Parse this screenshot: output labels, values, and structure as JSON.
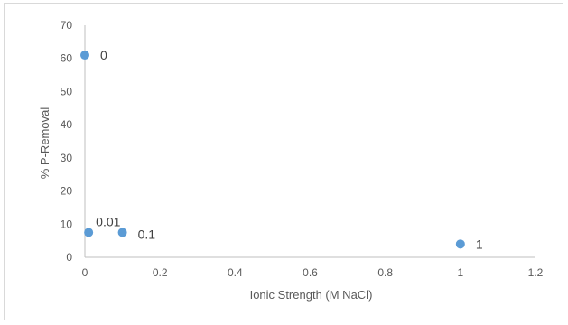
{
  "chart_data": {
    "type": "scatter",
    "title": "",
    "xlabel": "Ionic Strength (M NaCl)",
    "ylabel": "% P-Removal",
    "xlim": [
      0,
      1.2
    ],
    "ylim": [
      0,
      70
    ],
    "xticks": [
      "0",
      "0.2",
      "0.4",
      "0.6",
      "0.8",
      "1",
      "1.2"
    ],
    "yticks": [
      "0",
      "10",
      "20",
      "30",
      "40",
      "50",
      "60",
      "70"
    ],
    "grid": false,
    "legend": "none",
    "marker_color": "#5b9bd5",
    "series": [
      {
        "points": [
          {
            "x": 0,
            "y": 61,
            "label": "0"
          },
          {
            "x": 0.01,
            "y": 7.5,
            "label": "0.01"
          },
          {
            "x": 0.1,
            "y": 7.5,
            "label": "0.1"
          },
          {
            "x": 1,
            "y": 4,
            "label": "1"
          }
        ]
      }
    ]
  }
}
